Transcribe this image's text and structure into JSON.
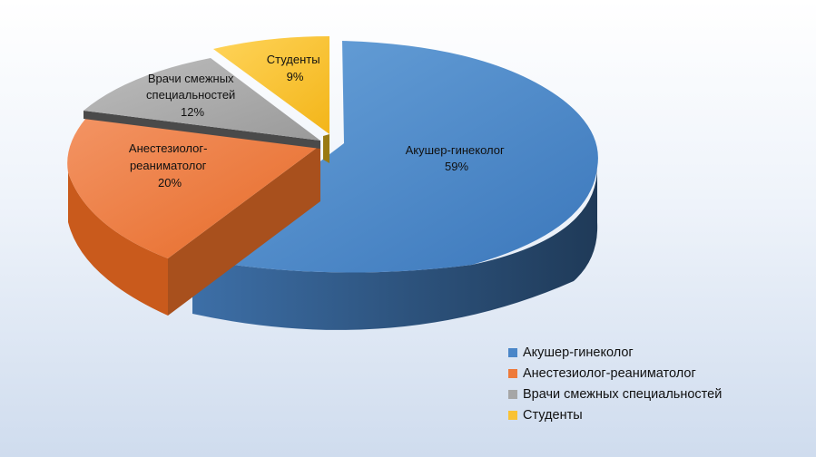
{
  "chart_data": {
    "type": "pie",
    "title": "",
    "legend_position": "bottom-right",
    "slices": [
      {
        "name": "Акушер-гинеколог",
        "value": 59,
        "label": "59%",
        "color": "#4a86c8"
      },
      {
        "name": "Анестезиолог-реаниматолог",
        "value": 20,
        "label": "20%",
        "color": "#ee7a3a"
      },
      {
        "name": "Врачи смежных специальностей",
        "value": 12,
        "label": "12%",
        "color": "#a6a6a6"
      },
      {
        "name": "Студенты",
        "value": 9,
        "label": "9%",
        "color": "#f9c234"
      }
    ],
    "label_lines": [
      [
        "Акушер-гинеколог",
        "59%"
      ],
      [
        "Анестезиолог-",
        "реаниматолог",
        "20%"
      ],
      [
        "Врачи смежных",
        "специальностей",
        "12%"
      ],
      [
        "Студенты",
        "9%"
      ]
    ]
  }
}
